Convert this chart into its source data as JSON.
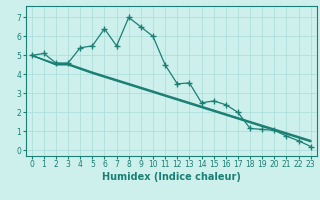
{
  "line1_x": [
    0,
    1,
    2,
    3,
    4,
    5,
    6,
    7,
    8,
    9,
    10,
    11,
    12,
    13,
    14,
    15,
    16,
    17,
    18,
    19,
    20,
    21,
    22,
    23
  ],
  "line1_y": [
    5.0,
    5.1,
    4.6,
    4.6,
    5.4,
    5.5,
    6.4,
    5.5,
    7.0,
    6.5,
    6.0,
    4.5,
    3.5,
    3.55,
    2.5,
    2.6,
    2.4,
    2.0,
    1.15,
    1.1,
    1.05,
    0.75,
    0.5,
    0.2
  ],
  "line2_x": [
    0,
    2,
    3,
    5,
    6,
    7,
    8,
    9,
    10,
    11,
    12,
    13,
    14,
    15,
    16,
    17,
    18,
    19,
    20,
    21,
    22,
    23
  ],
  "line2_y": [
    5.0,
    4.5,
    4.5,
    4.05,
    3.85,
    3.65,
    3.45,
    3.25,
    3.05,
    2.85,
    2.65,
    2.45,
    2.25,
    2.05,
    1.85,
    1.65,
    1.45,
    1.25,
    1.05,
    0.85,
    0.65,
    0.45
  ],
  "line3_x": [
    0,
    2,
    3,
    5,
    6,
    7,
    8,
    9,
    10,
    11,
    12,
    13,
    14,
    15,
    16,
    17,
    18,
    19,
    20,
    21,
    22,
    23
  ],
  "line3_y": [
    5.0,
    4.52,
    4.52,
    4.08,
    3.88,
    3.68,
    3.48,
    3.28,
    3.08,
    2.88,
    2.68,
    2.48,
    2.28,
    2.08,
    1.88,
    1.68,
    1.48,
    1.28,
    1.08,
    0.88,
    0.68,
    0.48
  ],
  "line4_x": [
    0,
    2,
    3,
    5,
    6,
    7,
    8,
    9,
    10,
    11,
    12,
    13,
    14,
    15,
    16,
    17,
    18,
    19,
    20,
    21,
    22,
    23
  ],
  "line4_y": [
    5.0,
    4.56,
    4.56,
    4.12,
    3.92,
    3.72,
    3.52,
    3.32,
    3.12,
    2.92,
    2.72,
    2.52,
    2.32,
    2.12,
    1.92,
    1.72,
    1.52,
    1.32,
    1.12,
    0.92,
    0.72,
    0.52
  ],
  "color": "#1a7f74",
  "bg_color": "#cef0ec",
  "grid_color": "#a8ddd8",
  "xlabel": "Humidex (Indice chaleur)",
  "xlim": [
    -0.5,
    23.5
  ],
  "ylim": [
    -0.3,
    7.6
  ],
  "yticks": [
    0,
    1,
    2,
    3,
    4,
    5,
    6,
    7
  ],
  "xticks": [
    0,
    1,
    2,
    3,
    4,
    5,
    6,
    7,
    8,
    9,
    10,
    11,
    12,
    13,
    14,
    15,
    16,
    17,
    18,
    19,
    20,
    21,
    22,
    23
  ],
  "marker": "+",
  "markersize": 4,
  "linewidth": 0.9,
  "xlabel_fontsize": 7,
  "tick_fontsize": 5.5
}
